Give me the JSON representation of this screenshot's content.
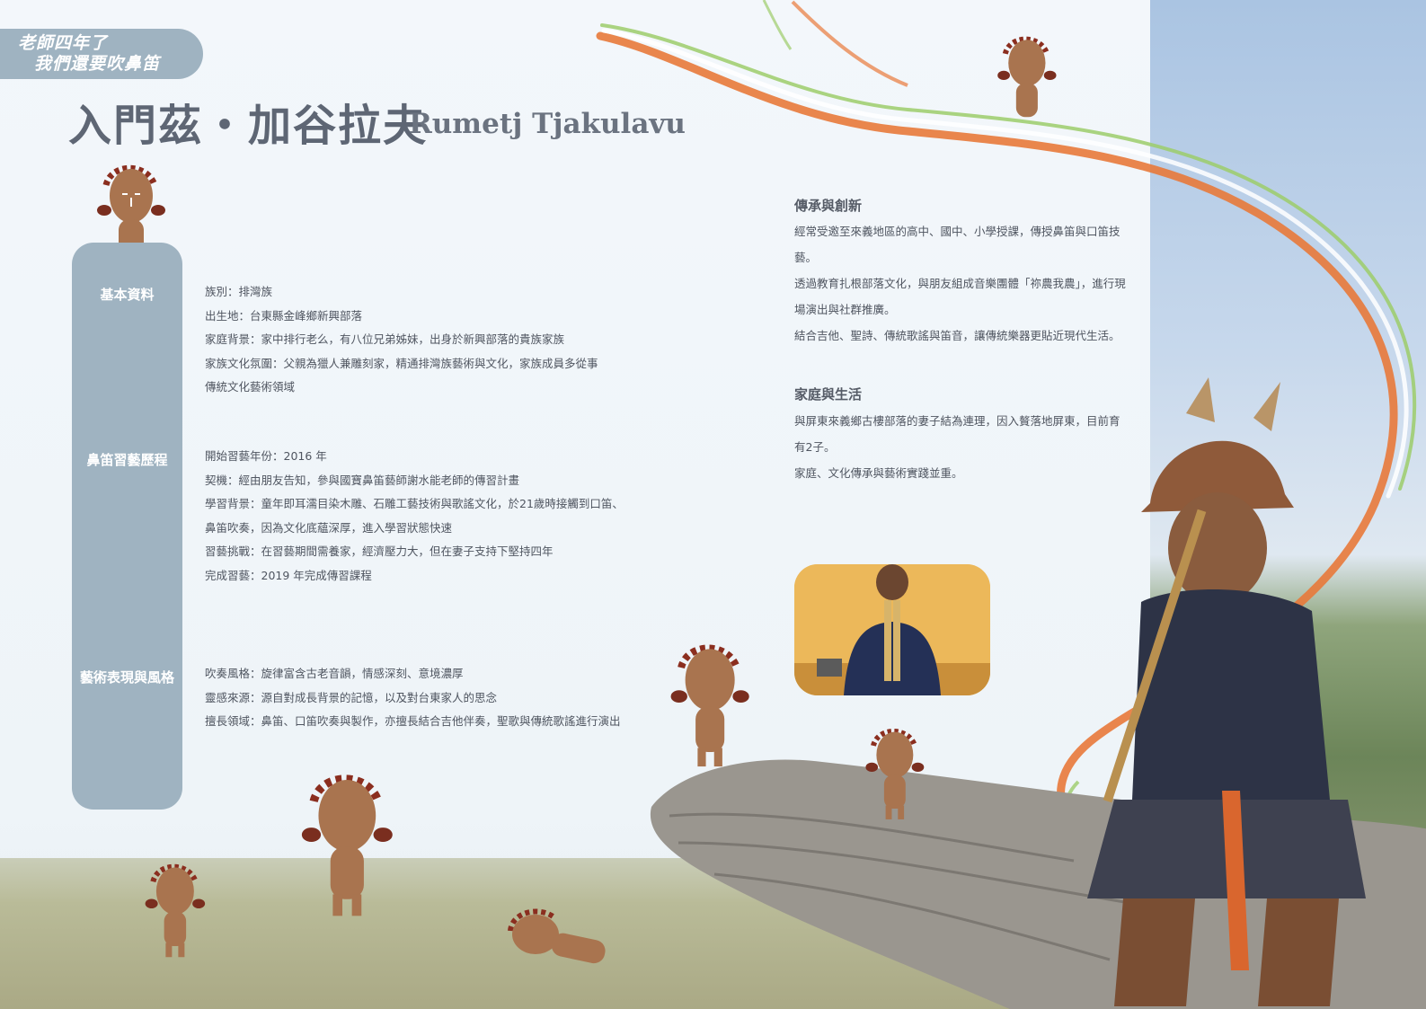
{
  "series": {
    "line1": "老師四年了",
    "line2": "我們還要吹鼻笛"
  },
  "person": {
    "name_zh": "入門茲‧加谷拉夫",
    "name_en": "Rumetj  Tjakulavu"
  },
  "basic_info": {
    "label": "基本資料",
    "items": [
      "族別：排灣族",
      "出生地：台東縣金峰鄉新興部落",
      "家庭背景：家中排行老么，有八位兄弟姊妹，出身於新興部落的貴族家族",
      "家族文化氛圍：父親為獵人兼雕刻家，精通排灣族藝術與文化，家族成員多從事",
      "傳統文化藝術領域"
    ]
  },
  "learning": {
    "label": "鼻笛習藝歷程",
    "items": [
      "開始習藝年份：2016 年",
      "契機：經由朋友告知，參與國寶鼻笛藝師謝水能老師的傳習計畫",
      "學習背景：童年即耳濡目染木雕、石雕工藝技術與歌謠文化，於21歲時接觸到口笛、",
      "鼻笛吹奏，因為文化底蘊深厚，進入學習狀態快速",
      "習藝挑戰：在習藝期間需養家，經濟壓力大，但在妻子支持下堅持四年",
      "完成習藝：2019 年完成傳習課程"
    ]
  },
  "art": {
    "label": "藝術表現與風格",
    "items": [
      "吹奏風格：旋律富含古老音韻，情感深刻、意境濃厚",
      "靈感來源：源自對成長背景的記憶，以及對台東家人的思念",
      "擅長領域：鼻笛、口笛吹奏與製作，亦擅長結合吉他伴奏，聖歌與傳統歌謠進行演出"
    ]
  },
  "heritage": {
    "title": "傳承與創新",
    "paragraphs": [
      "經常受邀至來義地區的高中、國中、小學授課，傳授鼻笛與口笛技藝。",
      "透過教育扎根部落文化，與朋友組成音樂團體「祢農我農」，進行現場演出與社群推廣。",
      "結合吉他、聖詩、傳統歌謠與笛音，讓傳統樂器更貼近現代生活。"
    ]
  },
  "family": {
    "title": "家庭與生活",
    "paragraphs": [
      "與屏東來義鄉古樓部落的妻子結為連理，因入贅落地屏東，目前育有2子。",
      "家庭、文化傳承與藝術實踐並重。"
    ]
  },
  "colors": {
    "accent": "#9fb3c1",
    "ribbon_orange": "#e8793a",
    "ribbon_green": "#9ccc6a",
    "doll_brown": "#a9744f"
  }
}
